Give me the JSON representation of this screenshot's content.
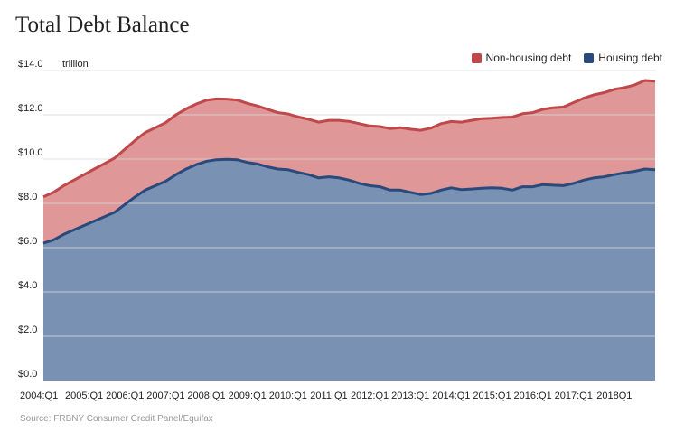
{
  "chart_data": {
    "type": "area",
    "title": "Total Debt Balance",
    "unit_label": "trillion",
    "source": "Source: FRBNY Consumer Credit Panel/Equifax",
    "ylim": [
      0,
      14
    ],
    "y_ticks": [
      {
        "value": 0,
        "label": "$0.0"
      },
      {
        "value": 2,
        "label": "$2.0"
      },
      {
        "value": 4,
        "label": "$4.0"
      },
      {
        "value": 6,
        "label": "$6.0"
      },
      {
        "value": 8,
        "label": "$8.0"
      },
      {
        "value": 10,
        "label": "$10.0"
      },
      {
        "value": 12,
        "label": "$12.0"
      },
      {
        "value": 14,
        "label": "$14.0"
      }
    ],
    "x_ticks": [
      {
        "index": 0,
        "label": "2004:Q1"
      },
      {
        "index": 4,
        "label": "2005:Q1"
      },
      {
        "index": 8,
        "label": "2006:Q1"
      },
      {
        "index": 12,
        "label": "2007:Q1"
      },
      {
        "index": 16,
        "label": "2008:Q1"
      },
      {
        "index": 20,
        "label": "2009:Q1"
      },
      {
        "index": 24,
        "label": "2010:Q1"
      },
      {
        "index": 28,
        "label": "2011:Q1"
      },
      {
        "index": 32,
        "label": "2012:Q1"
      },
      {
        "index": 36,
        "label": "2013:Q1"
      },
      {
        "index": 40,
        "label": "2014:Q1"
      },
      {
        "index": 44,
        "label": "2015:Q1"
      },
      {
        "index": 48,
        "label": "2016:Q1"
      },
      {
        "index": 52,
        "label": "2017:Q1"
      },
      {
        "index": 56,
        "label": "2018Q1"
      }
    ],
    "series": [
      {
        "name": "Housing debt",
        "color": "#2a4a7c",
        "fill": "#7991b3",
        "values": [
          6.2,
          6.35,
          6.6,
          6.8,
          7.0,
          7.2,
          7.4,
          7.6,
          7.95,
          8.3,
          8.6,
          8.8,
          9.0,
          9.3,
          9.55,
          9.75,
          9.9,
          9.97,
          9.99,
          9.97,
          9.85,
          9.78,
          9.65,
          9.55,
          9.52,
          9.4,
          9.3,
          9.15,
          9.2,
          9.15,
          9.05,
          8.9,
          8.8,
          8.75,
          8.6,
          8.6,
          8.5,
          8.4,
          8.45,
          8.6,
          8.7,
          8.62,
          8.65,
          8.68,
          8.7,
          8.68,
          8.6,
          8.75,
          8.75,
          8.85,
          8.82,
          8.8,
          8.9,
          9.05,
          9.15,
          9.2,
          9.3,
          9.38,
          9.45,
          9.55,
          9.52
        ]
      },
      {
        "name": "Non-housing debt",
        "color": "#c0474a",
        "fill": "#df9797",
        "values": [
          2.1,
          2.15,
          2.2,
          2.25,
          2.3,
          2.35,
          2.4,
          2.45,
          2.5,
          2.55,
          2.6,
          2.62,
          2.65,
          2.7,
          2.72,
          2.74,
          2.76,
          2.75,
          2.72,
          2.7,
          2.67,
          2.62,
          2.6,
          2.55,
          2.52,
          2.5,
          2.5,
          2.52,
          2.55,
          2.6,
          2.65,
          2.7,
          2.7,
          2.72,
          2.78,
          2.82,
          2.85,
          2.9,
          2.95,
          3.0,
          3.0,
          3.05,
          3.1,
          3.15,
          3.15,
          3.2,
          3.3,
          3.3,
          3.35,
          3.4,
          3.5,
          3.55,
          3.65,
          3.7,
          3.75,
          3.8,
          3.85,
          3.85,
          3.9,
          4.0,
          4.0
        ]
      }
    ]
  }
}
